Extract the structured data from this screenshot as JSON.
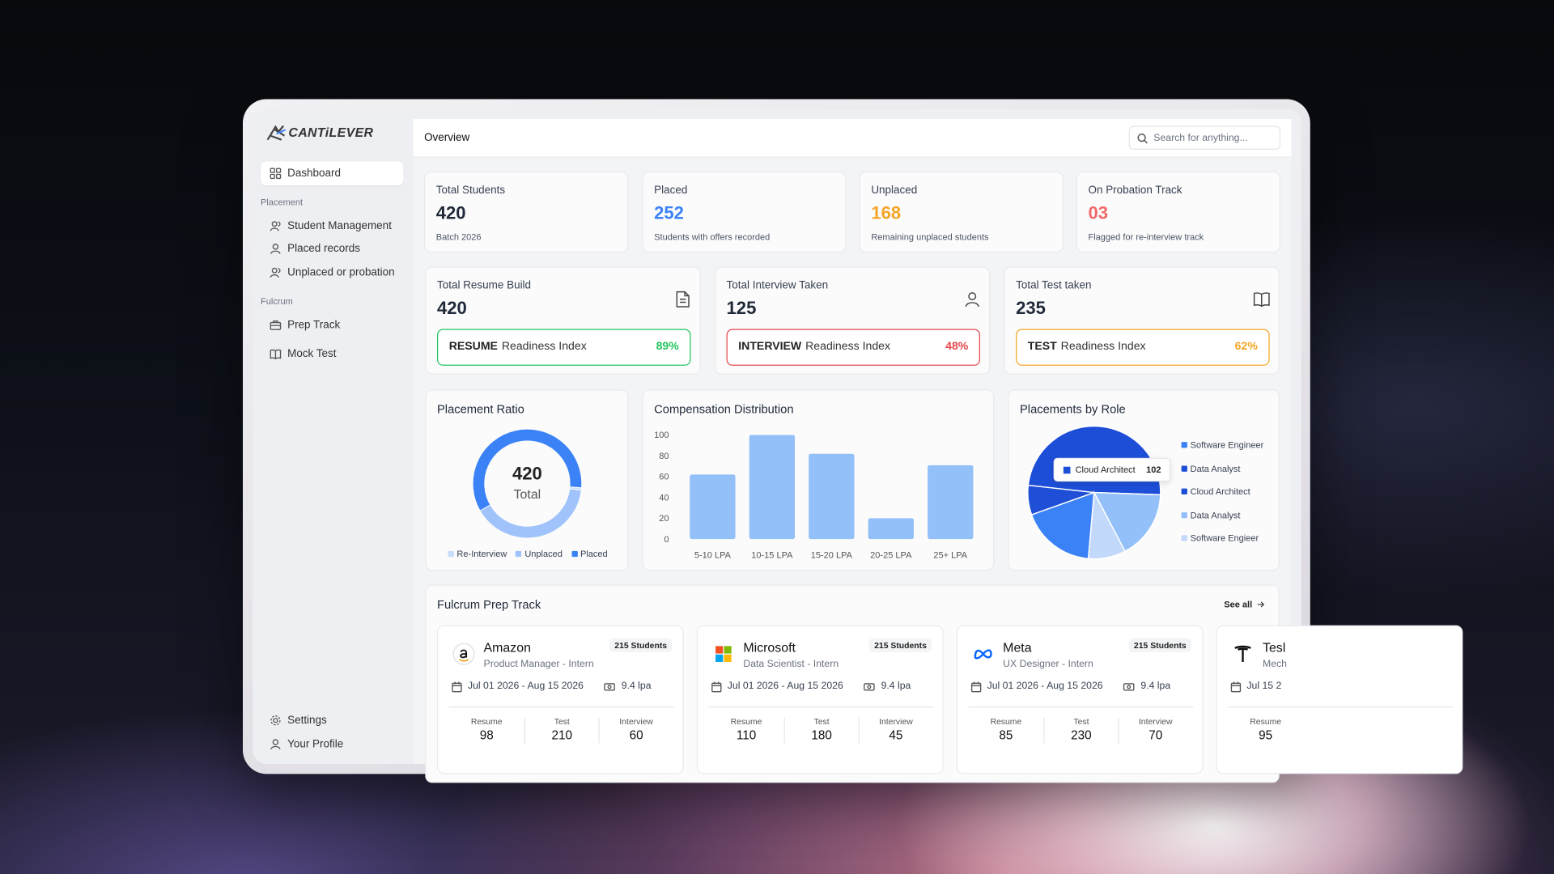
{
  "brand": {
    "name": "CANTiLEVER"
  },
  "sidebar": {
    "top": [
      "Dashboard"
    ],
    "sections": [
      {
        "title": "Placement",
        "items": [
          "Student Management",
          "Placed records",
          "Unplaced or probation"
        ]
      },
      {
        "title": "Fulcrum",
        "items": [
          "Prep Track",
          "Mock Test"
        ]
      }
    ],
    "bottom": [
      "Settings",
      "Your Profile"
    ]
  },
  "header": {
    "title": "Overview",
    "search_placeholder": "Search for anything..."
  },
  "stats": [
    {
      "label": "Total Students",
      "value": "420",
      "note": "Batch 2026",
      "color": "#1f2937"
    },
    {
      "label": "Placed",
      "value": "252",
      "note": "Students with offers recorded",
      "color": "#3b82f6"
    },
    {
      "label": "Unplaced",
      "value": "168",
      "note": "Remaining unplaced students",
      "color": "#f5a524"
    },
    {
      "label": "On Probation Track",
      "value": "03",
      "note": "Flagged for re-interview track",
      "color": "#f06a6a"
    }
  ],
  "readiness": [
    {
      "label": "Total Resume Build",
      "value": "420",
      "key": "RESUME",
      "index": "Readiness Index",
      "percent": "89%",
      "color": "#22c55e"
    },
    {
      "label": "Total Interview Taken",
      "value": "125",
      "key": "INTERVIEW",
      "index": "Readiness Index",
      "percent": "48%",
      "color": "#e5484d"
    },
    {
      "label": "Total Test taken",
      "value": "235",
      "key": "TEST",
      "index": "Readiness Index",
      "percent": "62%",
      "color": "#f5a524"
    }
  ],
  "charts": {
    "placement_ratio": {
      "type": "donut",
      "title": "Placement Ratio",
      "center_value": "420",
      "center_label": "Total",
      "series": [
        {
          "name": "Re-Interview",
          "color": "#c9ddfc",
          "value": 3
        },
        {
          "name": "Unplaced",
          "color": "#9fc3fa",
          "value": 168
        },
        {
          "name": "Placed",
          "color": "#3b82f6",
          "value": 252
        }
      ]
    },
    "compensation": {
      "type": "bar",
      "title": "Compensation Distribution",
      "categories": [
        "5-10 LPA",
        "10-15 LPA",
        "15-20 LPA",
        "20-25 LPA",
        "25+ LPA"
      ],
      "values": [
        62,
        100,
        82,
        20,
        71
      ],
      "color": "#93c0f8",
      "ylim": [
        0,
        100
      ],
      "yticks": [
        0,
        20,
        40,
        60,
        80,
        100
      ]
    },
    "roles": {
      "type": "pie",
      "title": "Placements by Role",
      "series": [
        {
          "name": "Software Engineer",
          "color": "#3b82f6",
          "value": 38
        },
        {
          "name": "Data Analyst",
          "color": "#1e4fd6",
          "value": 15
        },
        {
          "name": "Cloud Architect",
          "color": "#1d4ed8",
          "value": 102
        },
        {
          "name": "Data Analyst",
          "color": "#93c0f8",
          "value": 35
        },
        {
          "name": "Software Engieer",
          "color": "#c2d9fb",
          "value": 19
        }
      ],
      "tooltip": {
        "label": "Cloud Architect",
        "value": 102
      }
    }
  },
  "prep_track": {
    "title": "Fulcrum Prep Track",
    "see_all": "See all",
    "cards": [
      {
        "company": "Amazon",
        "role": "Product Manager - Intern",
        "students": "215 Students",
        "dates": "Jul 01 2026 - Aug 15 2026",
        "package": "9.4 lpa",
        "stats": [
          {
            "label": "Resume",
            "value": "98"
          },
          {
            "label": "Test",
            "value": "210"
          },
          {
            "label": "Interview",
            "value": "60"
          }
        ]
      },
      {
        "company": "Microsoft",
        "role": "Data Scientist - Intern",
        "students": "215 Students",
        "dates": "Jul 01 2026 - Aug 15 2026",
        "package": "9.4 lpa",
        "stats": [
          {
            "label": "Resume",
            "value": "110"
          },
          {
            "label": "Test",
            "value": "180"
          },
          {
            "label": "Interview",
            "value": "45"
          }
        ]
      },
      {
        "company": "Meta",
        "role": "UX Designer - Intern",
        "students": "215 Students",
        "dates": "Jul 01 2026 - Aug 15 2026",
        "package": "9.4 lpa",
        "stats": [
          {
            "label": "Resume",
            "value": "85"
          },
          {
            "label": "Test",
            "value": "230"
          },
          {
            "label": "Interview",
            "value": "70"
          }
        ]
      },
      {
        "company": "Tesl",
        "role": "Mech",
        "dates": "Jul 15 2",
        "stats": [
          {
            "label": "Resume",
            "value": "95"
          }
        ]
      }
    ]
  }
}
